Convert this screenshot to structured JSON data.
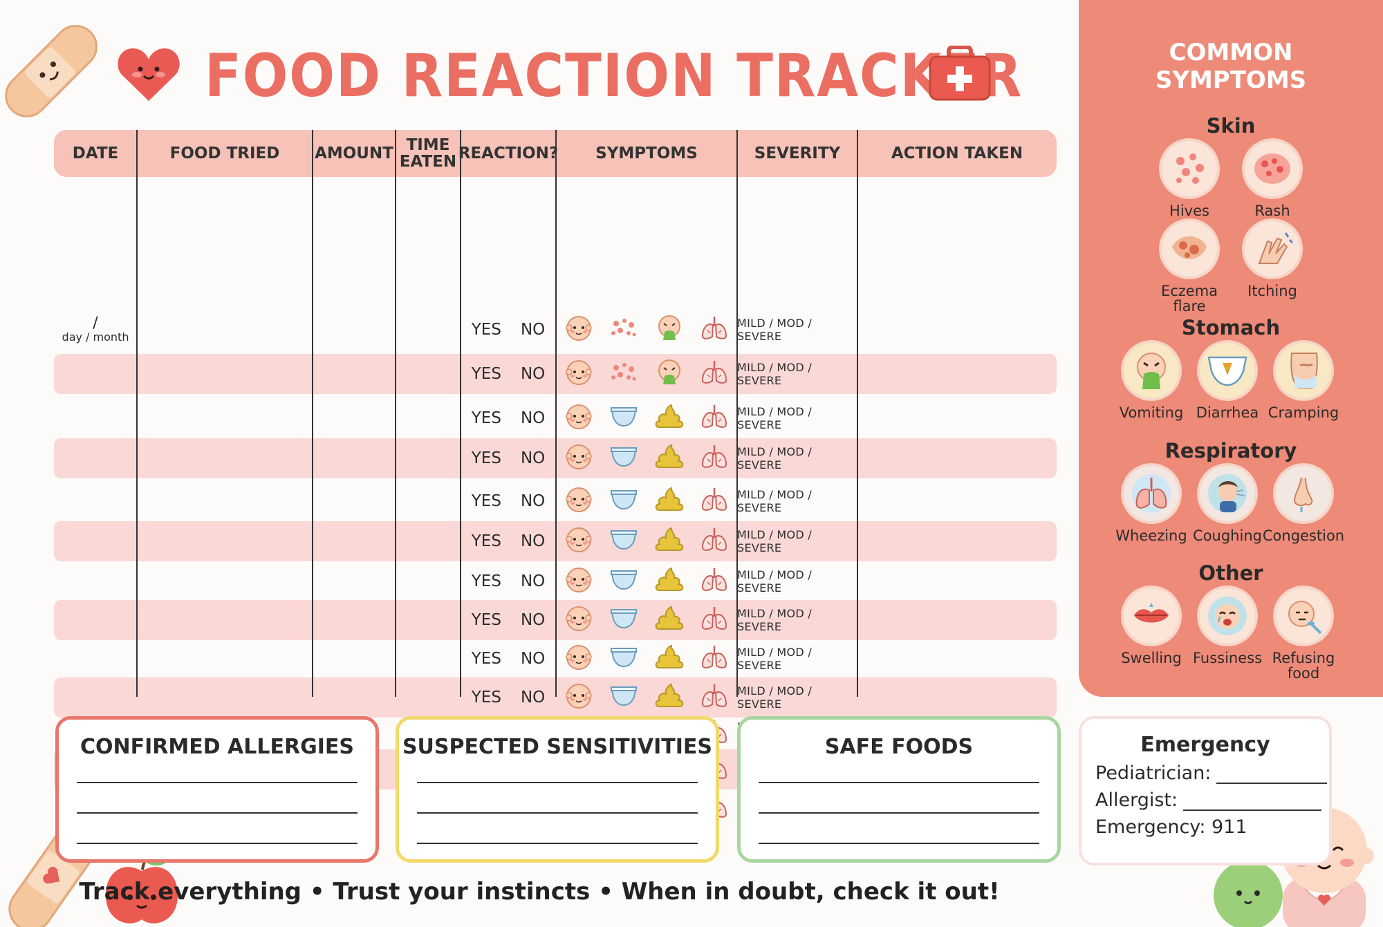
{
  "header": {
    "title": "FOOD REACTION TRACKER",
    "heart_icon": "heart-face-icon",
    "kit_icon": "first-aid-kit-icon"
  },
  "table": {
    "columns": [
      "DATE",
      "FOOD TRIED",
      "AMOUNT",
      "TIME\nEATEN",
      "REACTION?",
      "SYMPTOMS",
      "SEVERITY",
      "ACTION TAKEN"
    ],
    "date_hint_slash": "/",
    "date_hint": "day / month",
    "yes": "YES",
    "no": "NO",
    "severity": "MILD / MOD / SEVERE",
    "row_count": 13
  },
  "sidebar": {
    "title_line1": "COMMON",
    "title_line2": "SYMPTOMS",
    "sections": [
      {
        "heading": "Skin",
        "items": [
          "Hives",
          "Rash",
          "Eczema flare",
          "Itching"
        ]
      },
      {
        "heading": "Stomach",
        "items": [
          "Vomiting",
          "Diarrhea",
          "Cramping"
        ]
      },
      {
        "heading": "Respiratory",
        "items": [
          "Wheezing",
          "Coughing",
          "Congestion"
        ]
      },
      {
        "heading": "Other",
        "items": [
          "Swelling",
          "Fussiness",
          "Refusing food"
        ]
      }
    ]
  },
  "boxes": {
    "allergies": "CONFIRMED ALLERGIES",
    "sensitivities": "SUSPECTED SENSITIVITIES",
    "safe": "SAFE FOODS"
  },
  "emergency": {
    "title": "Emergency",
    "pediatrician": "Pediatrician:",
    "allergist": "Allergist:",
    "emergency": "Emergency: 911"
  },
  "footer": "Track everything • Trust your instincts • When in doubt, check it out!",
  "colors": {
    "accent": "#ea6f62",
    "header_band": "#f7c2b8",
    "row_shade": "#f9d8d6",
    "sidebar": "#ee8a78",
    "allergy_border": "#e8766a",
    "sensitivity_border": "#f2d96a",
    "safe_border": "#a9d6a0"
  }
}
